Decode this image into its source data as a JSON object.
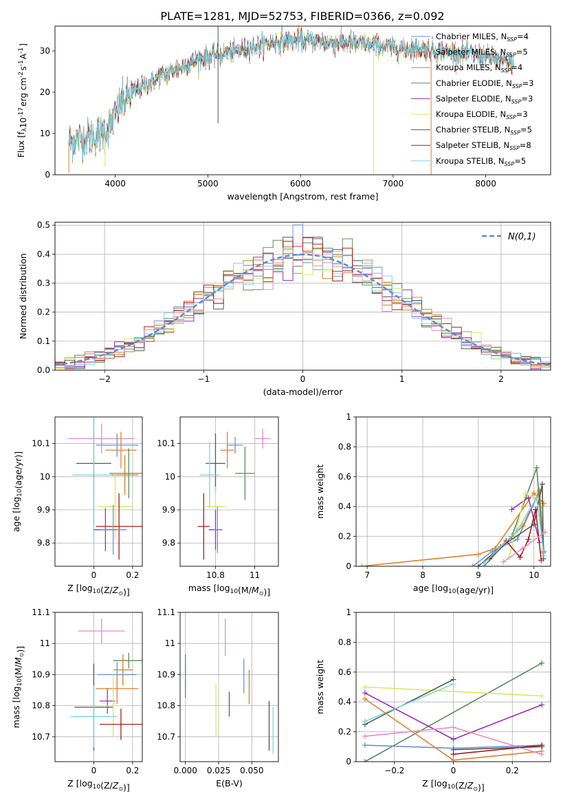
{
  "figure_title": "PLATE=1281, MJD=52753, FIBERID=0366, z=0.092",
  "colors": {
    "Chabrier MILES": "#6b8fdc",
    "Salpeter MILES": "#e07f2b",
    "Kroupa MILES": "#c8851f",
    "Chabrier ELODIE": "#5b8a5b",
    "Salpeter ELODIE": "#9b30b0",
    "Kroupa ELODIE": "#d9e85a",
    "Chabrier STELIB": "#555555",
    "Salpeter STELIB": "#a81a1a",
    "Kroupa STELIB": "#78d6e6",
    "extra_pink": "#e88cc0",
    "gaussian": "#5a8ad8",
    "grid": "#b0b0b0"
  },
  "chart_data": [
    {
      "id": "spectrum",
      "type": "line",
      "title": "PLATE=1281, MJD=52753, FIBERID=0366, z=0.092",
      "xlabel": "wavelength [Angstrom, rest frame]",
      "ylabel": "Flux [f_λ10^-17 erg cm^-2 s^-1 A^-1]",
      "xlim": [
        3350,
        8700
      ],
      "ylim": [
        0,
        36
      ],
      "xticks": [
        4000,
        5000,
        6000,
        7000,
        8000
      ],
      "yticks": [
        0,
        10,
        20,
        30
      ],
      "grid": false,
      "legend_position": "top-right",
      "continuum": [
        [
          3500,
          8
        ],
        [
          3700,
          9
        ],
        [
          3850,
          10
        ],
        [
          3950,
          12
        ],
        [
          4050,
          17
        ],
        [
          4200,
          20
        ],
        [
          4350,
          22
        ],
        [
          4500,
          24
        ],
        [
          4700,
          26
        ],
        [
          4900,
          28
        ],
        [
          5100,
          29
        ],
        [
          5300,
          30
        ],
        [
          5500,
          31
        ],
        [
          5700,
          32
        ],
        [
          5900,
          32.5
        ],
        [
          6100,
          32.5
        ],
        [
          6300,
          32
        ],
        [
          6500,
          32
        ],
        [
          6700,
          31.5
        ],
        [
          6900,
          31
        ],
        [
          7100,
          30.5
        ],
        [
          7300,
          30.5
        ],
        [
          7500,
          30
        ],
        [
          7700,
          29.5
        ],
        [
          7900,
          29
        ],
        [
          8100,
          28
        ],
        [
          8300,
          27
        ]
      ],
      "spikes": [
        [
          5110,
          36
        ],
        [
          5110,
          12.5
        ],
        [
          6790,
          0
        ],
        [
          7410,
          0
        ],
        [
          3500,
          0.5
        ],
        [
          3890,
          2
        ]
      ],
      "series": [
        {
          "name": "Chabrier MILES, N_SSP=4",
          "label": "Chabrier MILES, N",
          "sub": "SSP",
          "nssp": "=4"
        },
        {
          "name": "Salpeter MILES, N_SSP=5",
          "label": "Salpeter MILES, N",
          "sub": "SSP",
          "nssp": "=5"
        },
        {
          "name": "Kroupa MILES, N_SSP=4",
          "label": "Kroupa MILES, N",
          "sub": "SSP",
          "nssp": "=4"
        },
        {
          "name": "Chabrier ELODIE, N_SSP=3",
          "label": "Chabrier ELODIE, N",
          "sub": "SSP",
          "nssp": "=3"
        },
        {
          "name": "Salpeter ELODIE, N_SSP=3",
          "label": "Salpeter ELODIE, N",
          "sub": "SSP",
          "nssp": "=3"
        },
        {
          "name": "Kroupa ELODIE, N_SSP=3",
          "label": "Kroupa ELODIE, N",
          "sub": "SSP",
          "nssp": "=3"
        },
        {
          "name": "Chabrier STELIB, N_SSP=5",
          "label": "Chabrier STELIB, N",
          "sub": "SSP",
          "nssp": "=5"
        },
        {
          "name": "Salpeter STELIB, N_SSP=8",
          "label": "Salpeter STELIB, N",
          "sub": "SSP",
          "nssp": "=8"
        },
        {
          "name": "Kroupa STELIB, N_SSP=5",
          "label": "Kroupa STELIB, N",
          "sub": "SSP",
          "nssp": "=5"
        }
      ]
    },
    {
      "id": "residuals",
      "type": "line",
      "xlabel": "(data-model)/error",
      "ylabel": "Normed distribution",
      "xlim": [
        -2.5,
        2.5
      ],
      "ylim": [
        0,
        0.51
      ],
      "xticks": [
        -2,
        -1,
        0,
        1,
        2
      ],
      "yticks": [
        0.0,
        0.1,
        0.2,
        0.3,
        0.4,
        0.5
      ],
      "grid": true,
      "legend_position": "top-right",
      "legend_label": "N(0,1)",
      "bin_width": 0.1,
      "gaussian_curve": {
        "name": "N(0,1)",
        "mean": 0,
        "sigma": 1
      }
    },
    {
      "id": "age_vs_Z",
      "type": "scatter",
      "xlabel": "Z [log10(Z/Z⊙)]",
      "ylabel": "age  [log10(age/yr)]",
      "xlim": [
        -0.2,
        0.25
      ],
      "ylim": [
        9.73,
        10.18
      ],
      "xticks": [
        0.0,
        0.2
      ],
      "yticks": [
        9.8,
        9.9,
        10.0,
        10.1
      ],
      "grid": true,
      "errorbars": [
        {
          "series": "extra_pink",
          "x": 0.04,
          "y": 10.115,
          "xerr": 0.17,
          "yerr": 0.045
        },
        {
          "series": "Chabrier MILES",
          "x": 0.12,
          "y": 10.095,
          "xerr": 0.11,
          "yerr": 0.035
        },
        {
          "series": "Salpeter MILES",
          "x": 0.14,
          "y": 10.08,
          "xerr": 0.08,
          "yerr": 0.055
        },
        {
          "series": "Chabrier STELIB",
          "x": 0.0,
          "y": 10.04,
          "xerr": 0.09,
          "yerr": 0.18
        },
        {
          "series": "Chabrier ELODIE",
          "x": 0.18,
          "y": 10.01,
          "xerr": 0.1,
          "yerr": 0.075
        },
        {
          "series": "Kroupa STELIB",
          "x": 0.0,
          "y": 10.005,
          "xerr": 0.11,
          "yerr": 0.2
        },
        {
          "series": "Kroupa MILES",
          "x": 0.16,
          "y": 10.005,
          "xerr": 0.07,
          "yerr": 0.06
        },
        {
          "series": "Kroupa ELODIE",
          "x": 0.11,
          "y": 9.91,
          "xerr": 0.09,
          "yerr": 0.1
        },
        {
          "series": "Salpeter STELIB",
          "x": 0.13,
          "y": 9.85,
          "xerr": 0.12,
          "yerr": 0.1
        },
        {
          "series": "Salpeter ELODIE",
          "x": 0.06,
          "y": 9.84,
          "xerr": 0.06,
          "yerr": 0.065
        },
        {
          "series": "Chabrier MILES",
          "x": 0.1,
          "y": 9.84,
          "xerr": 0.07,
          "yerr": 0.075
        }
      ]
    },
    {
      "id": "age_vs_mass",
      "type": "scatter",
      "xlabel": "mass [log10(M/M⊙)]",
      "ylabel": "",
      "xlim": [
        10.62,
        11.12
      ],
      "ylim": [
        9.73,
        10.18
      ],
      "xticks": [
        10.8,
        11.0
      ],
      "yticks": [
        9.8,
        9.9,
        10.0,
        10.1
      ],
      "grid": true,
      "errorbars": [
        {
          "series": "extra_pink",
          "x": 11.04,
          "y": 10.115,
          "xerr": 0.04,
          "yerr": 0.03
        },
        {
          "series": "Chabrier MILES",
          "x": 10.9,
          "y": 10.095,
          "xerr": 0.04,
          "yerr": 0.025
        },
        {
          "series": "Salpeter MILES",
          "x": 10.86,
          "y": 10.08,
          "xerr": 0.035,
          "yerr": 0.055
        },
        {
          "series": "Chabrier STELIB",
          "x": 10.8,
          "y": 10.04,
          "xerr": 0.05,
          "yerr": 0.09
        },
        {
          "series": "Chabrier ELODIE",
          "x": 10.95,
          "y": 10.01,
          "xerr": 0.05,
          "yerr": 0.08
        },
        {
          "series": "Kroupa STELIB",
          "x": 10.77,
          "y": 10.005,
          "xerr": 0.05,
          "yerr": 0.1
        },
        {
          "series": "Kroupa ELODIE",
          "x": 10.8,
          "y": 9.91,
          "xerr": 0.05,
          "yerr": 0.06
        },
        {
          "series": "Salpeter STELIB",
          "x": 10.74,
          "y": 9.85,
          "xerr": 0.03,
          "yerr": 0.1
        },
        {
          "series": "Salpeter ELODIE",
          "x": 10.8,
          "y": 9.84,
          "xerr": 0.035,
          "yerr": 0.06
        },
        {
          "series": "Chabrier MILES",
          "x": 10.81,
          "y": 9.84,
          "xerr": 0.02,
          "yerr": 0.07
        }
      ]
    },
    {
      "id": "weight_vs_age",
      "type": "line",
      "xlabel": "age  [log10(age/yr)]",
      "ylabel": "mass weight",
      "xlim": [
        6.8,
        10.3
      ],
      "ylim": [
        0,
        1.0
      ],
      "xticks": [
        7,
        8,
        9,
        10
      ],
      "yticks": [
        0.0,
        0.2,
        0.4,
        0.6,
        0.8,
        1.0
      ],
      "grid": true,
      "series": [
        {
          "name": "Salpeter MILES",
          "points": [
            [
              6.9,
              0.0
            ],
            [
              9.0,
              0.08
            ],
            [
              9.3,
              0.12
            ],
            [
              10.0,
              0.49
            ],
            [
              10.18,
              0.42
            ]
          ]
        },
        {
          "name": "Chabrier MILES",
          "points": [
            [
              8.9,
              0.0
            ],
            [
              9.25,
              0.1
            ],
            [
              9.7,
              0.18
            ],
            [
              10.1,
              0.5
            ],
            [
              10.18,
              0.1
            ]
          ]
        },
        {
          "name": "Kroupa MILES",
          "points": [
            [
              9.2,
              0.05
            ],
            [
              9.8,
              0.27
            ],
            [
              10.1,
              0.51
            ],
            [
              10.17,
              0.1
            ]
          ]
        },
        {
          "name": "Chabrier ELODIE",
          "points": [
            [
              9.1,
              0.0
            ],
            [
              9.6,
              0.2
            ],
            [
              10.05,
              0.66
            ],
            [
              10.17,
              0.09
            ]
          ]
        },
        {
          "name": "Salpeter ELODIE",
          "points": [
            [
              9.6,
              0.38
            ],
            [
              9.9,
              0.46
            ],
            [
              10.1,
              0.16
            ]
          ]
        },
        {
          "name": "Kroupa ELODIE",
          "points": [
            [
              9.55,
              0.06
            ],
            [
              9.85,
              0.49
            ],
            [
              10.05,
              0.44
            ]
          ]
        },
        {
          "name": "Chabrier STELIB",
          "points": [
            [
              9.0,
              0.0
            ],
            [
              9.4,
              0.13
            ],
            [
              10.0,
              0.28
            ],
            [
              10.15,
              0.55
            ],
            [
              10.17,
              0.05
            ]
          ]
        },
        {
          "name": "Salpeter STELIB",
          "points": [
            [
              9.2,
              0.05
            ],
            [
              9.5,
              0.17
            ],
            [
              9.75,
              0.06
            ],
            [
              9.9,
              0.18
            ],
            [
              10.03,
              0.38
            ],
            [
              10.13,
              0.04
            ]
          ]
        },
        {
          "name": "Kroupa STELIB",
          "points": [
            [
              9.1,
              0.02
            ],
            [
              9.7,
              0.24
            ],
            [
              10.05,
              0.46
            ],
            [
              10.18,
              0.07
            ]
          ]
        },
        {
          "name": "extra_pink",
          "points": [
            [
              9.45,
              0.03
            ],
            [
              9.8,
              0.12
            ],
            [
              10.2,
              0.23
            ]
          ]
        }
      ]
    },
    {
      "id": "mass_vs_Z",
      "type": "scatter",
      "xlabel": "Z [log10(Z/Z⊙)]",
      "ylabel": "mass [log10(M/M⊙)]",
      "xlim": [
        -0.2,
        0.25
      ],
      "ylim": [
        10.62,
        11.1
      ],
      "xticks": [
        0.0,
        0.2
      ],
      "yticks": [
        10.7,
        10.8,
        10.9,
        11.0,
        11.1
      ],
      "grid": true,
      "errorbars": [
        {
          "series": "extra_pink",
          "x": 0.04,
          "y": 11.04,
          "xerr": 0.12,
          "yerr": 0.04
        },
        {
          "series": "Chabrier ELODIE",
          "x": 0.18,
          "y": 10.945,
          "xerr": 0.08,
          "yerr": 0.025
        },
        {
          "series": "Kroupa MILES",
          "x": 0.15,
          "y": 10.915,
          "xerr": 0.05,
          "yerr": 0.05
        },
        {
          "series": "Chabrier MILES",
          "x": 0.12,
          "y": 10.9,
          "xerr": 0.1,
          "yerr": 0.04
        },
        {
          "series": "Salpeter MILES",
          "x": 0.12,
          "y": 10.855,
          "xerr": 0.11,
          "yerr": 0.05
        },
        {
          "series": "Salpeter ELODIE",
          "x": 0.07,
          "y": 10.815,
          "xerr": 0.04,
          "yerr": 0.04
        },
        {
          "series": "Chabrier STELIB",
          "x": -0.0,
          "y": 10.795,
          "xerr": 0.1,
          "yerr": 0.14
        },
        {
          "series": "Kroupa ELODIE",
          "x": 0.1,
          "y": 10.8,
          "xerr": 0.09,
          "yerr": 0.1
        },
        {
          "series": "Kroupa STELIB",
          "x": 0.0,
          "y": 10.765,
          "xerr": 0.12,
          "yerr": 0.1
        },
        {
          "series": "Salpeter STELIB",
          "x": 0.14,
          "y": 10.74,
          "xerr": 0.11,
          "yerr": 0.05
        }
      ]
    },
    {
      "id": "mass_vs_ebv",
      "type": "scatter",
      "xlabel": "E(B-V)",
      "ylabel": "",
      "xlim": [
        -0.004,
        0.07
      ],
      "ylim": [
        10.62,
        11.1
      ],
      "xticks": [
        0.0,
        0.025,
        0.05
      ],
      "xticklabels": [
        "0.000",
        "0.025",
        "0.050"
      ],
      "yticks": [
        10.7,
        10.8,
        10.9,
        11.0,
        11.1
      ],
      "grid": true,
      "errorbars": [
        {
          "series": "extra_pink",
          "x": 0.03,
          "y": 11.02,
          "xerr": 0,
          "yerr": 0.06
        },
        {
          "series": "Chabrier ELODIE",
          "x": 0.0,
          "y": 10.895,
          "xerr": 0,
          "yerr": 0.07
        },
        {
          "series": "Chabrier MILES",
          "x": 0.044,
          "y": 10.895,
          "xerr": 0,
          "yerr": 0.055
        },
        {
          "series": "Kroupa MILES",
          "x": 0.048,
          "y": 10.86,
          "xerr": 0,
          "yerr": 0.055
        },
        {
          "series": "Salpeter ELODIE",
          "x": 0.033,
          "y": 10.805,
          "xerr": 0,
          "yerr": 0.04
        },
        {
          "series": "Kroupa ELODIE",
          "x": 0.023,
          "y": 10.785,
          "xerr": 0,
          "yerr": 0.085
        },
        {
          "series": "Chabrier STELIB",
          "x": 0.063,
          "y": 10.735,
          "xerr": 0,
          "yerr": 0.08
        },
        {
          "series": "Kroupa STELIB",
          "x": 0.066,
          "y": 10.72,
          "xerr": 0,
          "yerr": 0.075
        }
      ]
    },
    {
      "id": "weight_vs_Z",
      "type": "line",
      "xlabel": "Z [log10(Z/Z⊙)]",
      "ylabel": "mass weight",
      "xlim": [
        -0.33,
        0.33
      ],
      "ylim": [
        0,
        1.0
      ],
      "xticks": [
        -0.2,
        0.0,
        0.2
      ],
      "yticks": [
        0.0,
        0.2,
        0.4,
        0.6,
        0.8,
        1.0
      ],
      "grid": true,
      "series": [
        {
          "name": "Chabrier ELODIE",
          "points": [
            [
              -0.3,
              0.0
            ],
            [
              0.3,
              0.66
            ]
          ]
        },
        {
          "name": "Kroupa ELODIE",
          "points": [
            [
              -0.3,
              0.5
            ],
            [
              0.3,
              0.44
            ]
          ]
        },
        {
          "name": "Salpeter ELODIE",
          "points": [
            [
              -0.3,
              0.46
            ],
            [
              0.0,
              0.15
            ],
            [
              0.3,
              0.38
            ]
          ]
        },
        {
          "name": "Chabrier STELIB",
          "points": [
            [
              -0.3,
              0.25
            ],
            [
              0.0,
              0.55
            ]
          ]
        },
        {
          "name": "Kroupa STELIB",
          "points": [
            [
              -0.3,
              0.27
            ],
            [
              0.0,
              0.52
            ]
          ]
        },
        {
          "name": "Salpeter MILES",
          "points": [
            [
              -0.3,
              0.42
            ],
            [
              0.0,
              0.01
            ],
            [
              0.3,
              0.07
            ]
          ]
        },
        {
          "name": "extra_pink",
          "points": [
            [
              -0.3,
              0.17
            ],
            [
              0.0,
              0.23
            ],
            [
              0.3,
              0.05
            ]
          ]
        },
        {
          "name": "Chabrier MILES",
          "points": [
            [
              -0.3,
              0.11
            ],
            [
              0.0,
              0.09
            ],
            [
              0.3,
              0.11
            ]
          ]
        },
        {
          "name": "Chabrier STELIB",
          "points": [
            [
              0.0,
              0.08
            ],
            [
              0.3,
              0.1
            ]
          ]
        },
        {
          "name": "Salpeter STELIB",
          "points": [
            [
              0.0,
              0.05
            ],
            [
              0.3,
              0.11
            ]
          ]
        }
      ]
    }
  ]
}
